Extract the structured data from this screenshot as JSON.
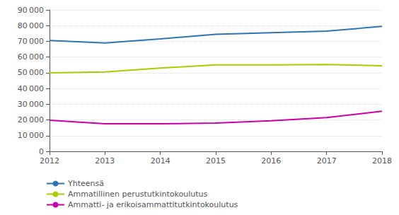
{
  "chart_data": {
    "type": "line",
    "x": [
      2012,
      2013,
      2014,
      2015,
      2016,
      2017,
      2018
    ],
    "series": [
      {
        "name": "Yhteensä",
        "color": "#2E75B6",
        "values": [
          70500,
          69000,
          71500,
          74500,
          75500,
          76500,
          79500
        ]
      },
      {
        "name": "Ammatillinen perustutkintokoulutus",
        "color": "#AACC00",
        "values": [
          50000,
          50500,
          53000,
          55000,
          55000,
          55200,
          54500
        ]
      },
      {
        "name": "Ammatti- ja erikoisammattitutkintokoulutus",
        "color": "#CC00AA",
        "values": [
          19800,
          17500,
          17500,
          18000,
          19500,
          21500,
          25500
        ]
      }
    ],
    "xlim": [
      2012,
      2018
    ],
    "xticks": [
      2012,
      2013,
      2014,
      2015,
      2016,
      2017,
      2018
    ],
    "ylim": [
      0,
      90000
    ],
    "yticks": [
      0,
      {
        "value": 10000,
        "label": "10 000"
      },
      {
        "value": 20000,
        "label": "20 000"
      },
      {
        "value": 30000,
        "label": "30 000"
      },
      {
        "value": 40000,
        "label": "40 000"
      },
      {
        "value": 50000,
        "label": "50 000"
      },
      {
        "value": 60000,
        "label": "60 000"
      },
      {
        "value": 70000,
        "label": "70 000"
      },
      {
        "value": 80000,
        "label": "80 000"
      },
      {
        "value": 90000,
        "label": "90 000"
      }
    ],
    "grid": true,
    "legend": "bottom"
  }
}
